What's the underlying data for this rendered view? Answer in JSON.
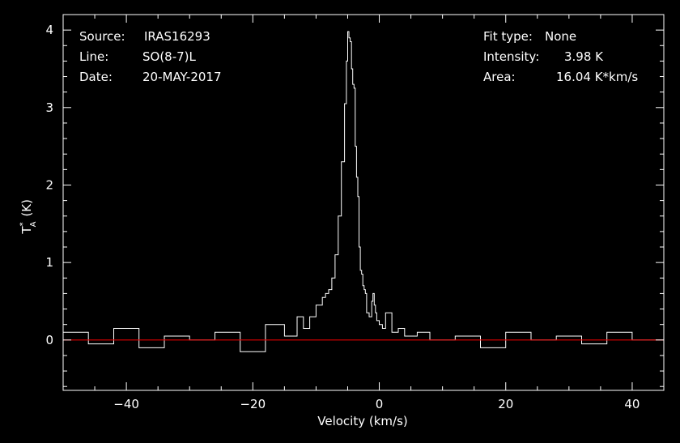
{
  "header": {
    "source_label": "Source:",
    "source_value": "IRAS16293",
    "line_label": "Line:",
    "line_value": "SO(8-7)L",
    "date_label": "Date:",
    "date_value": "20-MAY-2017",
    "fit_label": "Fit type:",
    "fit_value": "None",
    "intensity_label": "Intensity:",
    "intensity_value": "3.98 K",
    "area_label": "Area:",
    "area_value": "16.04 K*km/s"
  },
  "colors": {
    "background": "#000000",
    "foreground": "#ffffff",
    "baseline": "#e00000"
  },
  "chart_data": {
    "type": "line",
    "title": "",
    "xlabel": "Velocity (km/s)",
    "ylabel_main": "T",
    "ylabel_star": "*",
    "ylabel_sub": "A",
    "ylabel_unit": "(K)",
    "xlim": [
      -50,
      45
    ],
    "ylim": [
      -0.65,
      4.2
    ],
    "x_ticks": [
      -40,
      -20,
      0,
      20,
      40
    ],
    "x_tick_labels": [
      "-40",
      "-20",
      "0",
      "20",
      "40"
    ],
    "y_ticks": [
      0,
      1,
      2,
      3,
      4
    ],
    "y_tick_labels": [
      "0",
      "1",
      "2",
      "3",
      "4"
    ],
    "grid": false,
    "baseline_y": 0,
    "series": [
      {
        "style": "histogram",
        "x": [
          -50,
          -46,
          -42,
          -38,
          -34,
          -30,
          -26,
          -22,
          -18,
          -15,
          -13,
          -12,
          -11,
          -10,
          -9,
          -8.5,
          -8,
          -7.5,
          -7,
          -6.5,
          -6,
          -5.5,
          -5.2,
          -5,
          -4.8,
          -4.6,
          -4.4,
          -4.2,
          -4,
          -3.8,
          -3.6,
          -3.4,
          -3.2,
          -3,
          -2.8,
          -2.6,
          -2.4,
          -2.2,
          -2,
          -1.8,
          -1.6,
          -1.4,
          -1.2,
          -1,
          -0.8,
          -0.6,
          -0.4,
          0,
          0.5,
          1,
          2,
          3,
          4,
          6,
          8,
          12,
          16,
          20,
          24,
          28,
          32,
          36,
          40,
          45
        ],
        "y": [
          0.1,
          -0.05,
          0.15,
          -0.1,
          0.05,
          0,
          0.1,
          -0.15,
          0.2,
          0.05,
          0.3,
          0.15,
          0.3,
          0.45,
          0.55,
          0.6,
          0.65,
          0.8,
          1.1,
          1.6,
          2.3,
          3.05,
          3.6,
          3.98,
          3.9,
          3.85,
          3.5,
          3.3,
          3.25,
          2.5,
          2.1,
          1.85,
          1.2,
          0.9,
          0.85,
          0.7,
          0.65,
          0.6,
          0.35,
          0.35,
          0.3,
          0.3,
          0.5,
          0.6,
          0.45,
          0.35,
          0.25,
          0.2,
          0.15,
          0.35,
          0.1,
          0.15,
          0.05,
          0.1,
          0,
          0.05,
          -0.1,
          0.1,
          0,
          0.05,
          -0.05,
          0.1,
          0,
          0.05
        ]
      }
    ]
  }
}
